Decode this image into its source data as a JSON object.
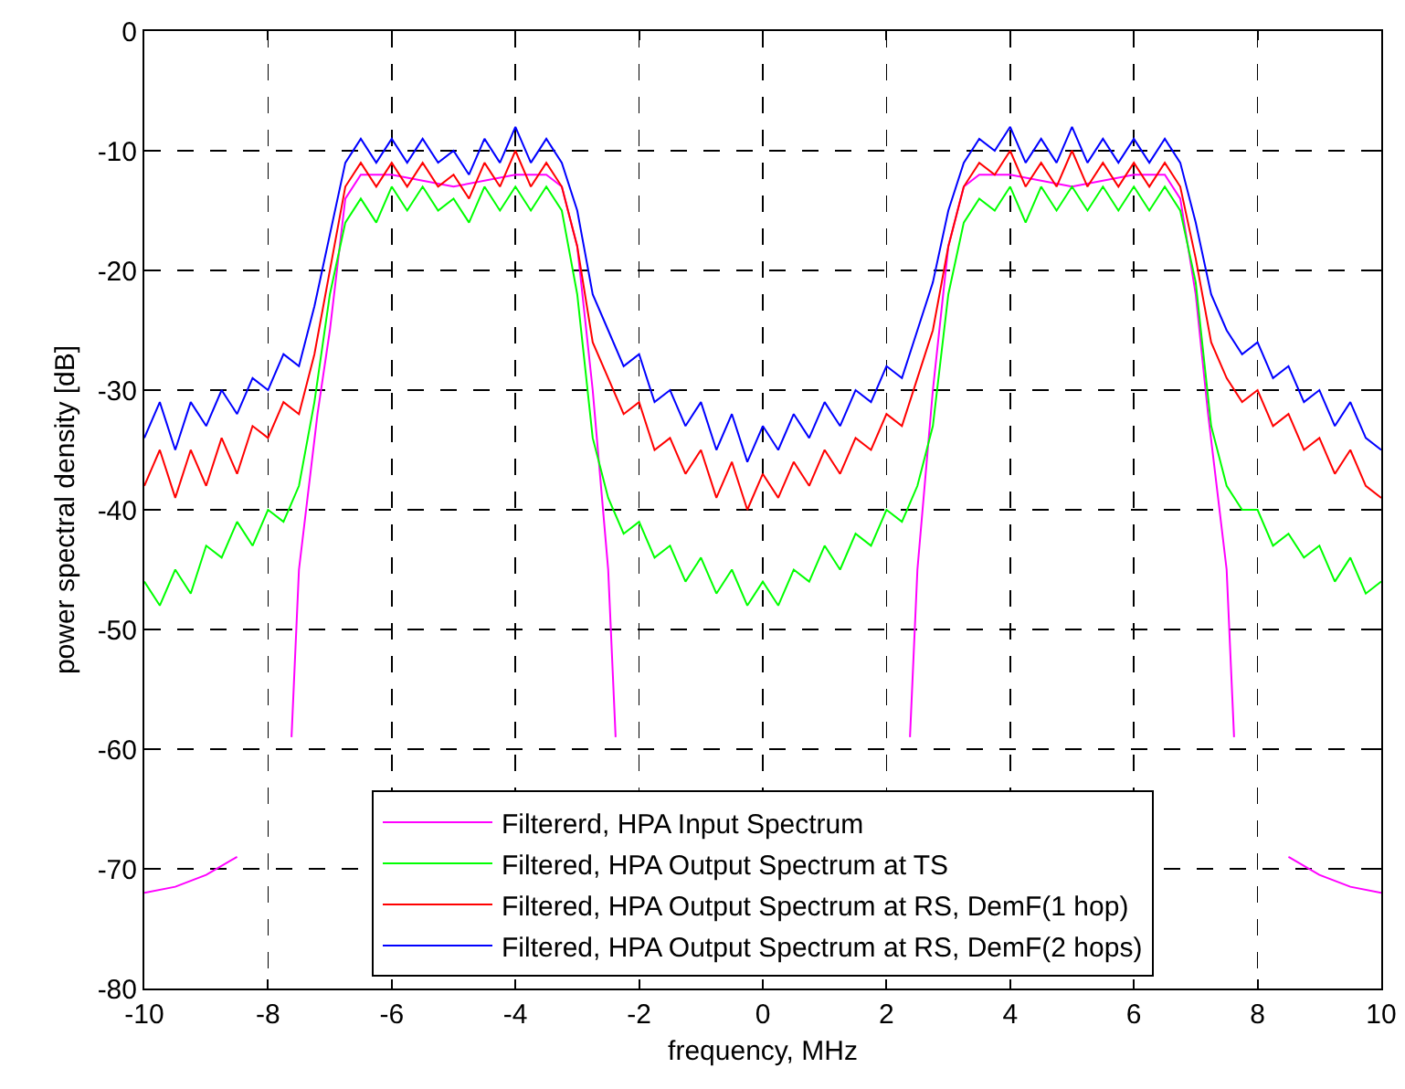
{
  "chart_data": {
    "type": "line",
    "xlabel": "frequency, MHz",
    "ylabel": "power spectral density [dB]",
    "x": [
      -10,
      -9.75,
      -9.5,
      -9.25,
      -9,
      -8.75,
      -8.5,
      -8.25,
      -8,
      -7.75,
      -7.5,
      -7.25,
      -7,
      -6.75,
      -6.5,
      -6.25,
      -6,
      -5.75,
      -5.5,
      -5.25,
      -5,
      -4.75,
      -4.5,
      -4.25,
      -4,
      -3.75,
      -3.5,
      -3.25,
      -3,
      -2.75,
      -2.5,
      -2.25,
      -2,
      -1.75,
      -1.5,
      -1.25,
      -1,
      -0.75,
      -0.5,
      -0.25,
      0,
      0.25,
      0.5,
      0.75,
      1,
      1.25,
      1.5,
      1.75,
      2,
      2.25,
      2.5,
      2.75,
      3,
      3.25,
      3.5,
      3.75,
      4,
      4.25,
      4.5,
      4.75,
      5,
      5.25,
      5.5,
      5.75,
      6,
      6.25,
      6.5,
      6.75,
      7,
      7.25,
      7.5,
      7.75,
      8,
      8.25,
      8.5,
      8.75,
      9,
      9.25,
      9.5,
      9.75,
      10
    ],
    "series": [
      {
        "name": "Filtererd, HPA Input Spectrum",
        "color": "#ff00ff",
        "x": [
          -10,
          -9.5,
          -9,
          -8.5,
          -8.2,
          -7.62,
          -7.5,
          -7.2,
          -7,
          -6.75,
          -6.5,
          -6,
          -5,
          -4,
          -3.5,
          -3.25,
          -3,
          -2.75,
          -2.5,
          -2.38,
          -2.2,
          2.2,
          2.38,
          2.5,
          2.75,
          3,
          3.25,
          3.5,
          4,
          5,
          6,
          6.5,
          6.75,
          7,
          7.2,
          7.5,
          7.62,
          8.2,
          8.5,
          9,
          9.5,
          10
        ],
        "values": [
          -72,
          -71.5,
          -70.5,
          -69,
          null,
          -59,
          -45,
          -32,
          -25,
          -14,
          -12,
          -12,
          -13,
          -12,
          -12,
          -13,
          -18,
          -30,
          -45,
          -59,
          null,
          null,
          -59,
          -45,
          -30,
          -18,
          -13,
          -12,
          -12,
          -13,
          -12,
          -12,
          -14,
          -22,
          -32,
          -45,
          -59,
          null,
          -69,
          -70.5,
          -71.5,
          -72
        ]
      },
      {
        "name": "Filtered, HPA Output Spectrum at TS",
        "color": "#00ff00",
        "values": [
          -46,
          -48,
          -45,
          -47,
          -43,
          -44,
          -41,
          -43,
          -40,
          -41,
          -38,
          -31,
          -22,
          -16,
          -14,
          -16,
          -13,
          -15,
          -13,
          -15,
          -14,
          -16,
          -13,
          -15,
          -13,
          -15,
          -13,
          -15,
          -22,
          -34,
          -39,
          -42,
          -41,
          -44,
          -43,
          -46,
          -44,
          -47,
          -45,
          -48,
          -46,
          -48,
          -45,
          -46,
          -43,
          -45,
          -42,
          -43,
          -40,
          -41,
          -38,
          -33,
          -22,
          -16,
          -14,
          -15,
          -13,
          -16,
          -13,
          -15,
          -13,
          -15,
          -13,
          -15,
          -13,
          -15,
          -13,
          -15,
          -21,
          -33,
          -38,
          -40,
          -40,
          -43,
          -42,
          -44,
          -43,
          -46,
          -44,
          -47,
          -46
        ]
      },
      {
        "name": "Filtered, HPA Output Spectrum at RS, DemF(1 hop)",
        "color": "#ff0000",
        "values": [
          -38,
          -35,
          -39,
          -35,
          -38,
          -34,
          -37,
          -33,
          -34,
          -31,
          -32,
          -27,
          -20,
          -13,
          -11,
          -13,
          -11,
          -13,
          -11,
          -13,
          -12,
          -14,
          -11,
          -13,
          -10,
          -13,
          -11,
          -13,
          -18,
          -26,
          -29,
          -32,
          -31,
          -35,
          -34,
          -37,
          -35,
          -39,
          -36,
          -40,
          -37,
          -39,
          -36,
          -38,
          -35,
          -37,
          -34,
          -35,
          -32,
          -33,
          -29,
          -25,
          -18,
          -13,
          -11,
          -12,
          -10,
          -13,
          -11,
          -13,
          -10,
          -13,
          -11,
          -13,
          -11,
          -13,
          -11,
          -13,
          -19,
          -26,
          -29,
          -31,
          -30,
          -33,
          -32,
          -35,
          -34,
          -37,
          -35,
          -38,
          -39
        ]
      },
      {
        "name": "Filtered, HPA Output Spectrum at RS, DemF(2 hops)",
        "color": "#0000ff",
        "values": [
          -34,
          -31,
          -35,
          -31,
          -33,
          -30,
          -32,
          -29,
          -30,
          -27,
          -28,
          -23,
          -17,
          -11,
          -9,
          -11,
          -9,
          -11,
          -9,
          -11,
          -10,
          -12,
          -9,
          -11,
          -8,
          -11,
          -9,
          -11,
          -15,
          -22,
          -25,
          -28,
          -27,
          -31,
          -30,
          -33,
          -31,
          -35,
          -32,
          -36,
          -33,
          -35,
          -32,
          -34,
          -31,
          -33,
          -30,
          -31,
          -28,
          -29,
          -25,
          -21,
          -15,
          -11,
          -9,
          -10,
          -8,
          -11,
          -9,
          -11,
          -8,
          -11,
          -9,
          -11,
          -9,
          -11,
          -9,
          -11,
          -16,
          -22,
          -25,
          -27,
          -26,
          -29,
          -28,
          -31,
          -30,
          -33,
          -31,
          -34,
          -35
        ]
      }
    ],
    "xlim": [
      -10,
      10
    ],
    "xticks": [
      -10,
      -8,
      -6,
      -4,
      -2,
      0,
      2,
      4,
      6,
      8,
      10
    ],
    "ylim": [
      -80,
      0
    ],
    "yticks": [
      -80,
      -70,
      -60,
      -50,
      -40,
      -30,
      -20,
      -10,
      0
    ],
    "grid": true,
    "legend": "bottom",
    "line_style": "solid",
    "marker": "none"
  }
}
